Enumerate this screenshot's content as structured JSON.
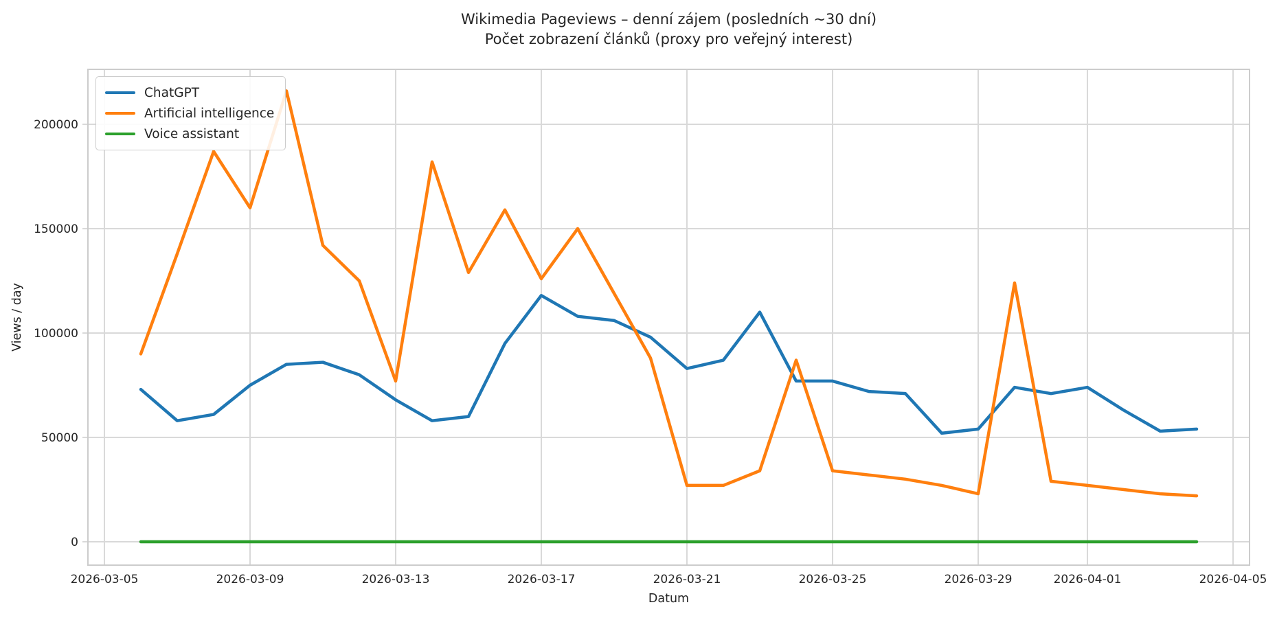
{
  "title": {
    "line1": "Wikimedia Pageviews – denní zájem (posledních ~30 dní)",
    "line2": "Počet zobrazení článků (proxy pro veřejný interest)"
  },
  "axes": {
    "x_label": "Datum",
    "y_label": "Views / day"
  },
  "chart_data": {
    "type": "line",
    "title": "Wikimedia Pageviews – denní zájem (posledních ~30 dní)",
    "subtitle": "Počet zobrazení článků (proxy pro veřejný interest)",
    "xlabel": "Datum",
    "ylabel": "Views / day",
    "grid": true,
    "legend_position": "upper left",
    "ylim": [
      -11000,
      226500
    ],
    "y_ticks": [
      0,
      50000,
      100000,
      150000,
      200000
    ],
    "y_tick_labels": [
      "0",
      "50000",
      "100000",
      "150000",
      "200000"
    ],
    "x_tick_labels": [
      "2026-03-05",
      "2026-03-09",
      "2026-03-13",
      "2026-03-17",
      "2026-03-21",
      "2026-03-25",
      "2026-03-29",
      "2026-04-01",
      "2026-04-05"
    ],
    "x": [
      "2026-03-06",
      "2026-03-07",
      "2026-03-08",
      "2026-03-09",
      "2026-03-10",
      "2026-03-11",
      "2026-03-12",
      "2026-03-13",
      "2026-03-14",
      "2026-03-15",
      "2026-03-16",
      "2026-03-17",
      "2026-03-18",
      "2026-03-19",
      "2026-03-20",
      "2026-03-21",
      "2026-03-22",
      "2026-03-23",
      "2026-03-24",
      "2026-03-25",
      "2026-03-26",
      "2026-03-27",
      "2026-03-28",
      "2026-03-29",
      "2026-03-30",
      "2026-03-31",
      "2026-04-01",
      "2026-04-02",
      "2026-04-03",
      "2026-04-04"
    ],
    "series": [
      {
        "name": "ChatGPT",
        "color": "#1f77b4",
        "values": [
          73000,
          58000,
          61000,
          75000,
          85000,
          86000,
          80000,
          68000,
          58000,
          60000,
          95000,
          118000,
          108000,
          106000,
          98000,
          83000,
          87000,
          110000,
          77000,
          77000,
          72000,
          71000,
          52000,
          54000,
          74000,
          71000,
          74000,
          63000,
          53000,
          54000
        ]
      },
      {
        "name": "Artificial intelligence",
        "color": "#ff7f0e",
        "values": [
          90000,
          138000,
          187000,
          160000,
          216000,
          142000,
          125000,
          77000,
          182000,
          129000,
          159000,
          126000,
          150000,
          119000,
          88000,
          27000,
          27000,
          34000,
          87000,
          34000,
          32000,
          30000,
          27000,
          23000,
          124000,
          29000,
          27000,
          25000,
          23000,
          22000
        ]
      },
      {
        "name": "Voice assistant",
        "color": "#2ca02c",
        "values": [
          0,
          0,
          0,
          0,
          0,
          0,
          0,
          0,
          0,
          0,
          0,
          0,
          0,
          0,
          0,
          0,
          0,
          0,
          0,
          0,
          0,
          0,
          0,
          0,
          0,
          0,
          0,
          0,
          0,
          0
        ]
      }
    ]
  },
  "style": {
    "grid_color": "#d9d9d9",
    "spine_color": "#cccccc",
    "text_color": "#262626"
  }
}
